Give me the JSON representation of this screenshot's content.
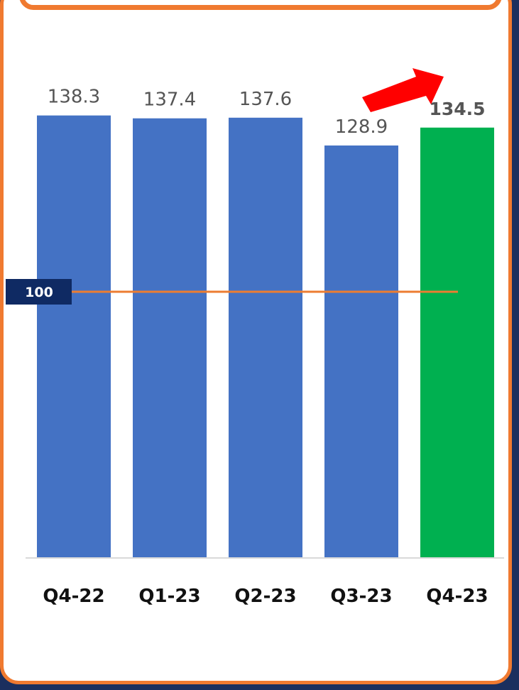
{
  "chart_data": {
    "type": "bar",
    "categories": [
      "Q4-22",
      "Q1-23",
      "Q2-23",
      "Q3-23",
      "Q4-23"
    ],
    "values": [
      138.3,
      137.4,
      137.6,
      128.9,
      134.5
    ],
    "value_labels": [
      "138.3",
      "137.4",
      "137.6",
      "128.9",
      "134.5"
    ],
    "highlight_index": 4,
    "reference_line": {
      "value": 100,
      "label": "100"
    },
    "ylim": [
      0,
      160
    ],
    "grid": false,
    "annotation": "red-arrow-up-right"
  },
  "colors": {
    "bar": "#4472c4",
    "highlight_bar": "#00b050",
    "reference_line": "#ed7d31",
    "reference_tag": "#0f2a63",
    "arrow": "#ff0000",
    "border": "#f07a30",
    "background": "#1b2f5e"
  }
}
